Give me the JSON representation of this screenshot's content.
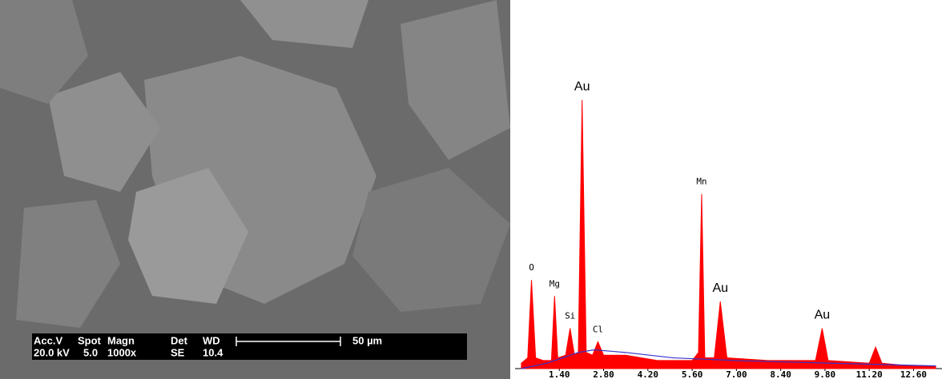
{
  "sem_info": {
    "labels": [
      "Acc.V",
      "Spot",
      "Magn",
      "Det",
      "WD"
    ],
    "values": [
      "20.0 kV",
      "5.0",
      "1000x",
      "SE",
      "10.4"
    ],
    "scale_bar": "50 µm"
  },
  "chart_data": {
    "type": "spectrum",
    "color": "#ff0000",
    "x": [
      0.2,
      0.4,
      0.52,
      0.65,
      0.9,
      1.15,
      1.25,
      1.35,
      1.6,
      1.74,
      1.88,
      2.0,
      2.12,
      2.25,
      2.45,
      2.62,
      2.8,
      3.5,
      4.5,
      5.6,
      5.8,
      5.9,
      6.0,
      6.3,
      6.49,
      6.7,
      8,
      9.5,
      9.71,
      9.9,
      11.2,
      11.4,
      11.6,
      12.5,
      13.3
    ],
    "values": [
      2,
      4,
      33,
      4,
      3,
      3,
      27,
      4,
      5,
      15,
      5,
      6,
      100,
      6,
      5,
      10,
      5,
      5,
      3,
      3,
      6,
      65,
      4,
      4,
      25,
      4,
      3,
      3,
      15,
      3,
      2,
      8,
      2,
      1,
      1
    ],
    "background": {
      "color": "#3333cc",
      "x": [
        0.2,
        1,
        2,
        2.5,
        3.5,
        5,
        7,
        10,
        13.3
      ],
      "values": [
        0,
        2,
        6,
        7,
        6,
        4,
        3,
        2,
        1
      ]
    },
    "peak_labels": [
      {
        "label": "O",
        "x": 0.52
      },
      {
        "label": "Mg",
        "x": 1.25
      },
      {
        "label": "Si",
        "x": 1.74
      },
      {
        "label": "Au",
        "x": 2.12
      },
      {
        "label": "Cl",
        "x": 2.62
      },
      {
        "label": "Mn",
        "x": 5.9
      },
      {
        "label": "Au",
        "x": 6.49
      },
      {
        "label": "Au",
        "x": 9.71
      }
    ],
    "xlim": [
      0,
      13.5
    ],
    "ylim": [
      0,
      100
    ],
    "xticks": [
      {
        "value": 1.4,
        "label": "1.40"
      },
      {
        "value": 2.8,
        "label": "2.80"
      },
      {
        "value": 4.2,
        "label": "4.20"
      },
      {
        "value": 5.6,
        "label": "5.60"
      },
      {
        "value": 7.0,
        "label": "7.00"
      },
      {
        "value": 8.4,
        "label": "8.40"
      },
      {
        "value": 9.8,
        "label": "9.80"
      },
      {
        "value": 11.2,
        "label": "11.20"
      },
      {
        "value": 12.6,
        "label": "12.60"
      }
    ]
  }
}
